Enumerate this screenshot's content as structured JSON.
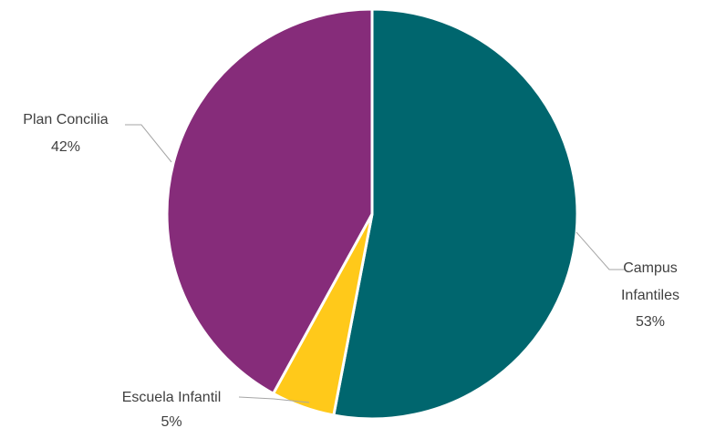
{
  "chart_data": {
    "type": "pie",
    "start_angle_deg": 0,
    "direction": "clockwise",
    "slices": [
      {
        "name": "Campus Infantiles",
        "label_lines": [
          "Campus",
          "Infantiles"
        ],
        "percent_label": "53%",
        "value": 53,
        "color": "#00666E"
      },
      {
        "name": "Escuela Infantil",
        "label_lines": [
          "Escuela Infantil"
        ],
        "percent_label": "5%",
        "value": 5,
        "color": "#FFC91A"
      },
      {
        "name": "Plan Concilia",
        "label_lines": [
          "Plan Concilia"
        ],
        "percent_label": "42%",
        "value": 42,
        "color": "#862C7A"
      }
    ],
    "title": "",
    "legend": "none",
    "slice_border_color": "#ffffff",
    "leader_line_color": "#a6a6a6"
  }
}
